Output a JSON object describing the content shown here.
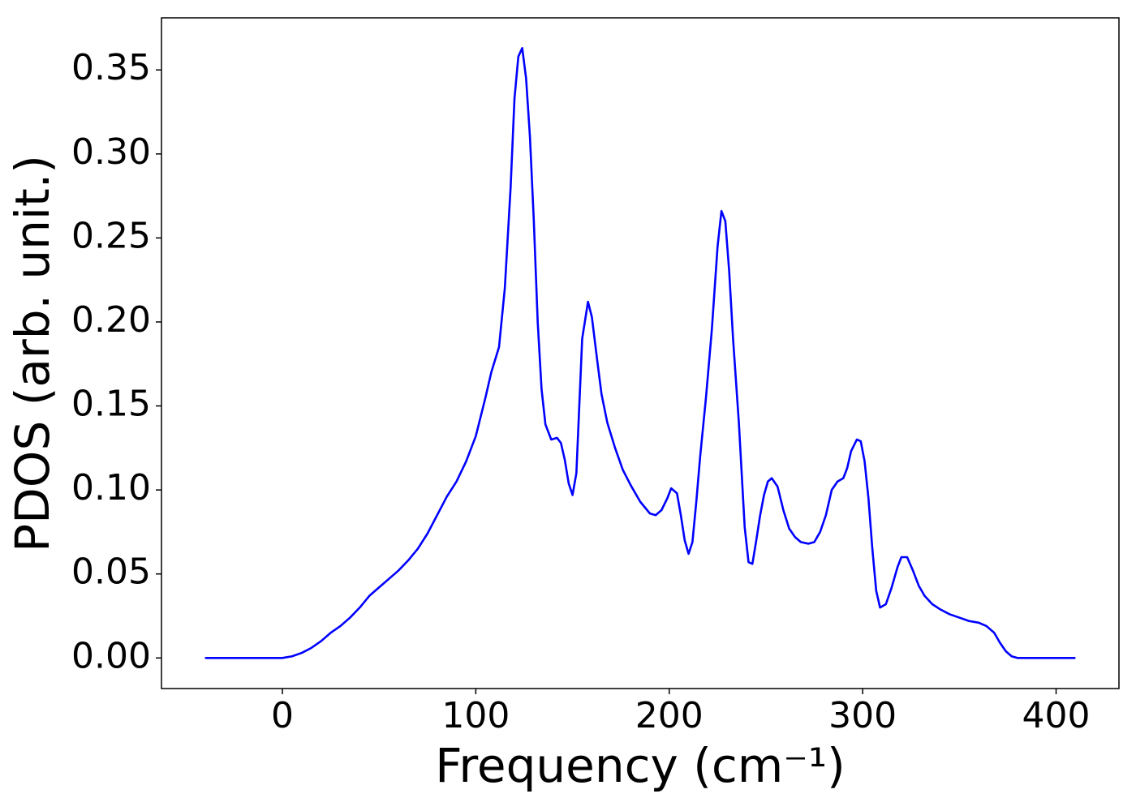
{
  "chart_data": {
    "type": "line",
    "xlabel": "Frequency (cm⁻¹)",
    "ylabel": "PDOS (arb. unit.)",
    "xlim": [
      -62.5,
      432.5
    ],
    "ylim": [
      -0.0182,
      0.381
    ],
    "xticks": [
      0,
      100,
      200,
      300,
      400
    ],
    "yticks": [
      {
        "value": 0,
        "label": "0.00"
      },
      {
        "value": 0.05,
        "label": "0.05"
      },
      {
        "value": 0.1,
        "label": "0.10"
      },
      {
        "value": 0.15,
        "label": "0.15"
      },
      {
        "value": 0.2,
        "label": "0.20"
      },
      {
        "value": 0.25,
        "label": "0.25"
      },
      {
        "value": 0.3,
        "label": "0.30"
      },
      {
        "value": 0.35,
        "label": "0.35"
      }
    ],
    "grid": false,
    "series": [
      {
        "color": "#0000ff",
        "x": [
          -40,
          -5,
          0,
          5,
          10,
          15,
          20,
          25,
          30,
          35,
          40,
          45,
          50,
          55,
          60,
          65,
          70,
          75,
          80,
          85,
          90,
          95,
          100,
          105,
          108,
          112,
          115,
          118,
          120,
          122,
          124,
          126,
          128,
          130,
          132,
          134,
          136,
          139,
          142,
          144,
          146,
          148,
          150,
          152,
          155,
          158,
          160,
          163,
          165,
          168,
          172,
          176,
          180,
          185,
          190,
          193,
          196,
          199,
          201,
          204,
          206,
          208,
          210,
          212,
          214,
          216,
          219,
          222,
          225,
          227,
          229,
          231,
          233,
          236,
          239,
          241,
          243,
          245,
          247,
          249,
          251,
          253,
          256,
          259,
          262,
          265,
          268,
          272,
          275,
          278,
          281,
          284,
          287,
          290,
          292,
          294,
          297,
          299,
          301,
          303,
          305,
          307,
          309,
          312,
          315,
          318,
          320,
          323,
          326,
          329,
          332,
          336,
          340,
          345,
          350,
          355,
          360,
          364,
          368,
          371,
          374,
          377,
          380,
          410
        ],
        "values": [
          0,
          0,
          0,
          0.001,
          0.003,
          0.006,
          0.01,
          0.015,
          0.019,
          0.024,
          0.03,
          0.037,
          0.042,
          0.047,
          0.052,
          0.058,
          0.065,
          0.074,
          0.085,
          0.096,
          0.105,
          0.117,
          0.132,
          0.155,
          0.17,
          0.185,
          0.22,
          0.28,
          0.333,
          0.358,
          0.363,
          0.345,
          0.31,
          0.26,
          0.2,
          0.16,
          0.139,
          0.13,
          0.131,
          0.128,
          0.118,
          0.104,
          0.097,
          0.11,
          0.19,
          0.212,
          0.203,
          0.175,
          0.157,
          0.14,
          0.125,
          0.112,
          0.103,
          0.093,
          0.086,
          0.085,
          0.088,
          0.095,
          0.101,
          0.098,
          0.085,
          0.07,
          0.062,
          0.069,
          0.093,
          0.12,
          0.155,
          0.195,
          0.245,
          0.266,
          0.26,
          0.23,
          0.19,
          0.14,
          0.078,
          0.057,
          0.056,
          0.07,
          0.085,
          0.097,
          0.105,
          0.107,
          0.102,
          0.088,
          0.077,
          0.072,
          0.069,
          0.068,
          0.069,
          0.075,
          0.085,
          0.1,
          0.105,
          0.107,
          0.113,
          0.123,
          0.13,
          0.129,
          0.117,
          0.095,
          0.065,
          0.04,
          0.03,
          0.032,
          0.042,
          0.054,
          0.06,
          0.06,
          0.052,
          0.043,
          0.037,
          0.032,
          0.029,
          0.026,
          0.024,
          0.022,
          0.021,
          0.019,
          0.015,
          0.009,
          0.004,
          0.001,
          0,
          0
        ]
      }
    ]
  }
}
